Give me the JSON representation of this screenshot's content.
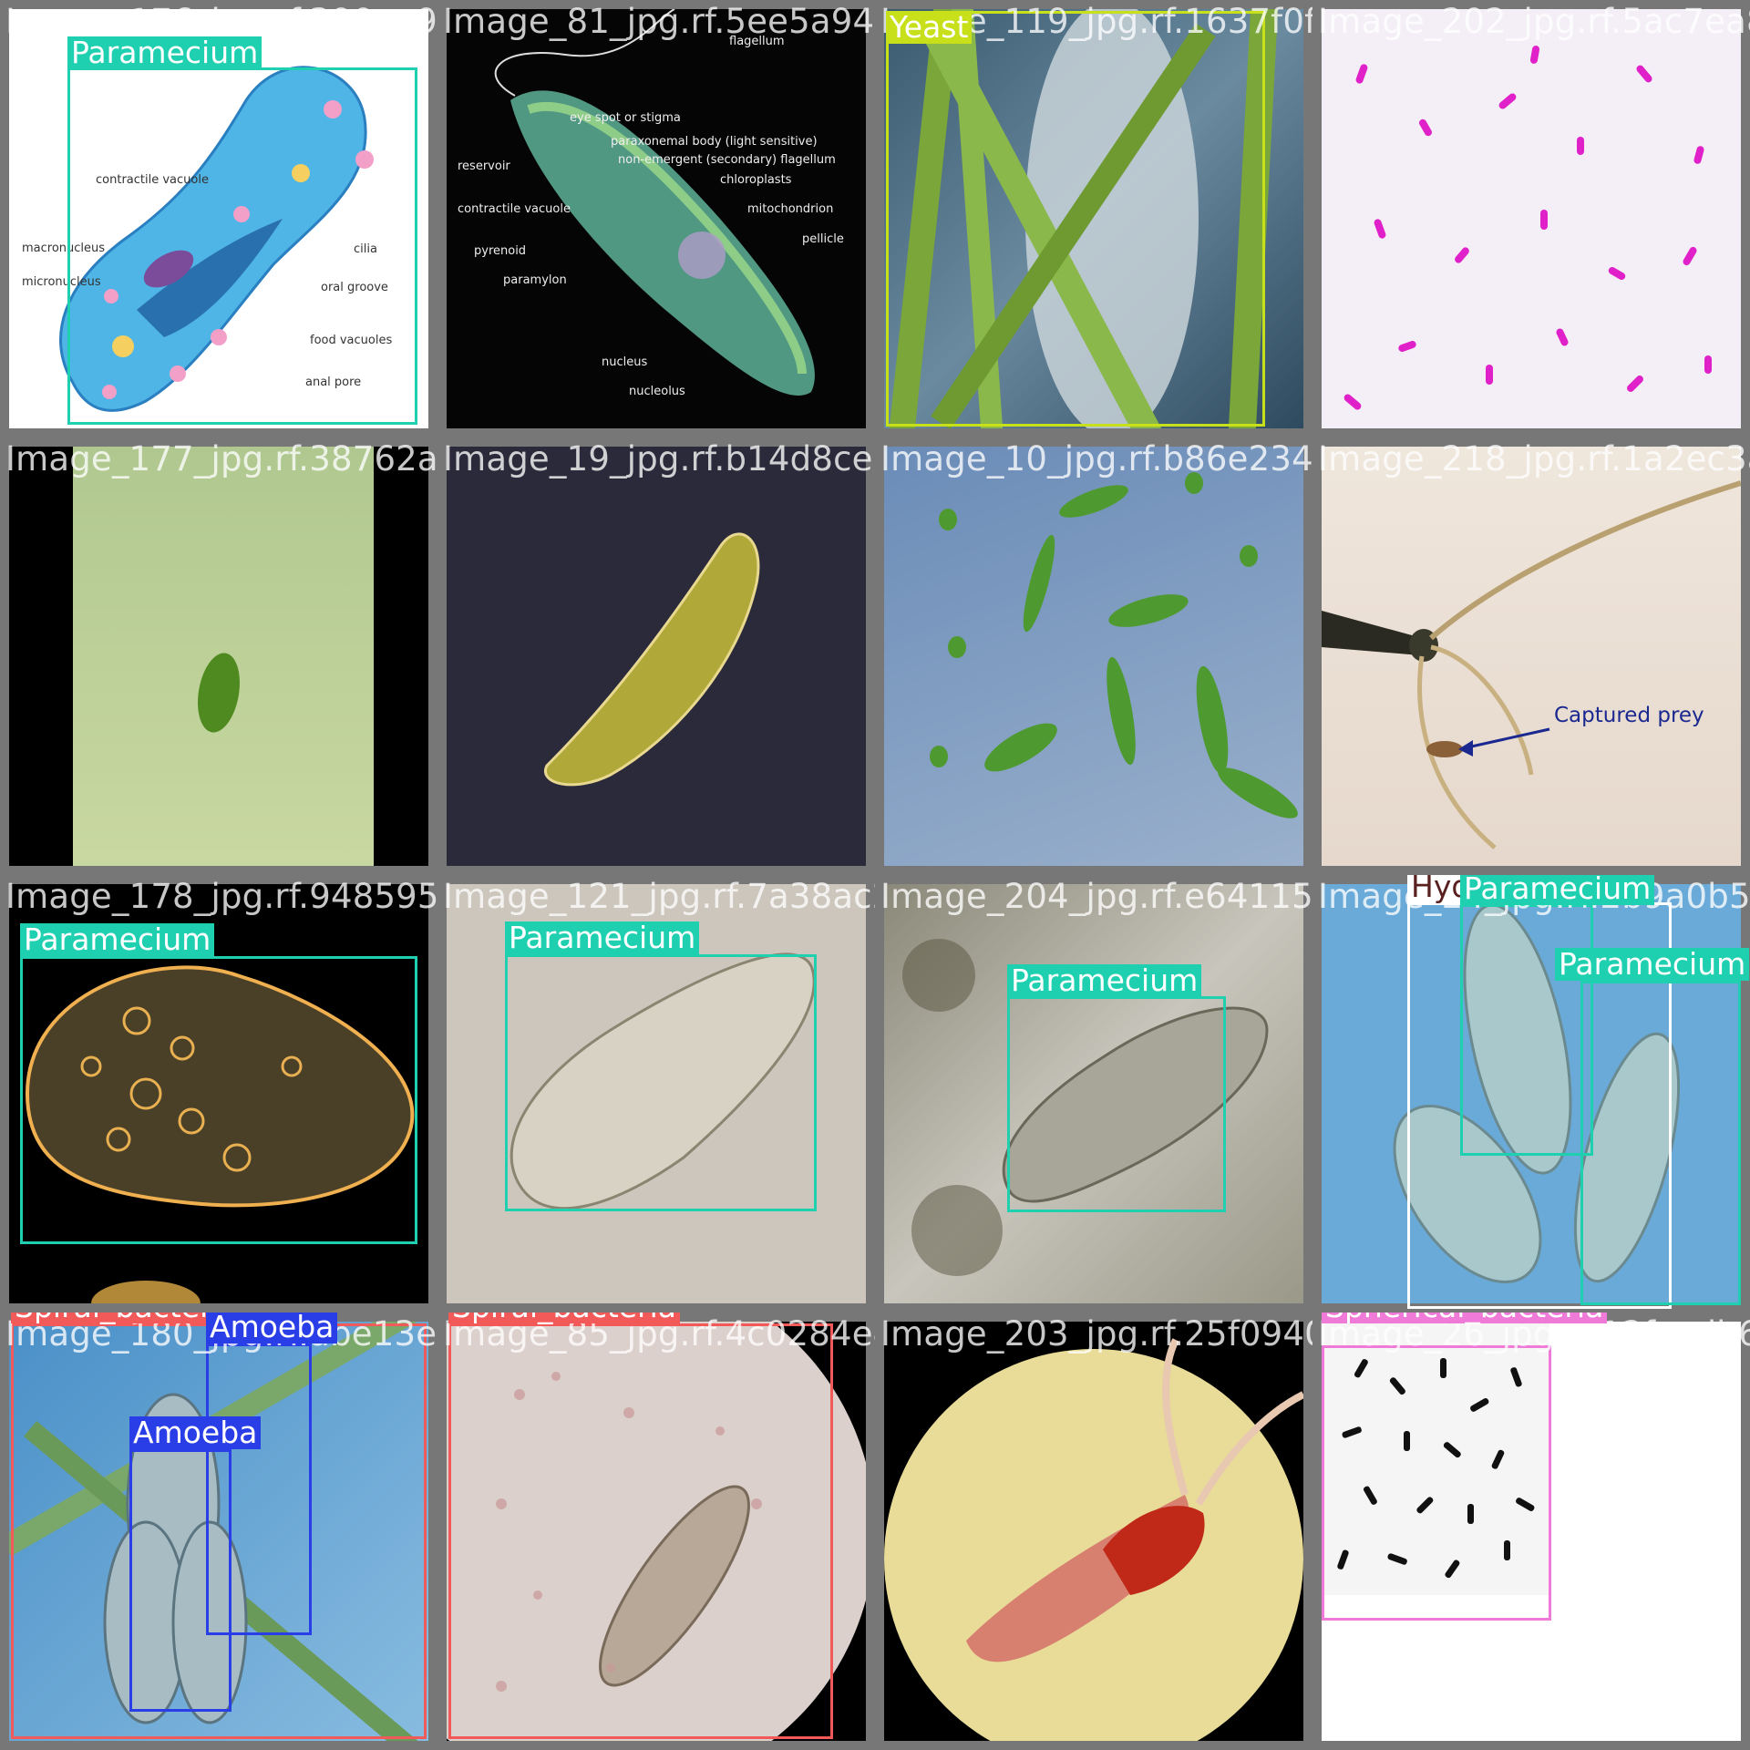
{
  "colors": {
    "Paramecium": "#1fd0b0",
    "Yeast": "#c8e019",
    "Spiral_bacteria": "#f25a5a",
    "Amoeba": "#2a3ee8",
    "Spherical_bacteria": "#f07ad8",
    "Hydra": "#ffffff"
  },
  "tiles": [
    {
      "filename": "Image_176_jpg.rf.390aa9b28418f8184798ef5a02a9ba",
      "labels": [
        "Paramecium"
      ],
      "diagram_labels": [
        "contractile vacuole",
        "macronucleus",
        "micronucleus",
        "cilia",
        "oral groove",
        "food vacuoles",
        "anal pore"
      ]
    },
    {
      "filename": "Image_81_jpg.rf.5ee5a94f06b0e",
      "labels": [],
      "diagram_labels": [
        "flagellum",
        "eye spot or stigma",
        "paraxonemal body (light sensitive)",
        "non-emergent (secondary) flagellum",
        "chloroplasts",
        "reservoir",
        "contractile vacuole",
        "mitochondrion",
        "pyrenoid",
        "pellicle",
        "paramylon",
        "nucleus",
        "nucleolus"
      ]
    },
    {
      "filename": "Image_119_jpg.rf.1637f0ff940a6fe2267",
      "labels": [
        "Yeast"
      ]
    },
    {
      "filename": "Image_202_jpg.rf.5ac7ea83e",
      "labels": []
    },
    {
      "filename": "Image_177_jpg.rf.38762a8ae51f4c79ad38a",
      "labels": []
    },
    {
      "filename": "Image_19_jpg.rf.b14d8ce717153847",
      "labels": []
    },
    {
      "filename": "Image_10_jpg.rf.b86e23463ca132d",
      "labels": []
    },
    {
      "filename": "Image_218_jpg.rf.1a2ec3ae240",
      "labels": [],
      "annotation": "Captured prey"
    },
    {
      "filename": "Image_178_jpg.rf.948595278f4ec3519",
      "labels": [
        "Paramecium"
      ]
    },
    {
      "filename": "Image_121_jpg.rf.7a38ac22d6c4034b",
      "labels": [
        "Paramecium"
      ]
    },
    {
      "filename": "Image_204_jpg.rf.e6411510694",
      "labels": [
        "Paramecium"
      ]
    },
    {
      "filename": "Image_24_jpg.rf.2b9a0b5089",
      "labels": [
        "Hydra",
        "Paramecium",
        "Paramecium"
      ]
    },
    {
      "filename": "Image_180_jpg.rf.abe13e1",
      "labels": [
        "Spiral_bacteria",
        "Amoeba",
        "Amoeba"
      ]
    },
    {
      "filename": "Image_85_jpg.rf.4c0284e498b3e2",
      "labels": [
        "Spiral_bacteria"
      ]
    },
    {
      "filename": "Image_203_jpg.rf.25f09407c6",
      "labels": []
    },
    {
      "filename": "Image_26_jpg.rf.12facdb6b58",
      "labels": [
        "Spherical_bacteria"
      ]
    }
  ]
}
